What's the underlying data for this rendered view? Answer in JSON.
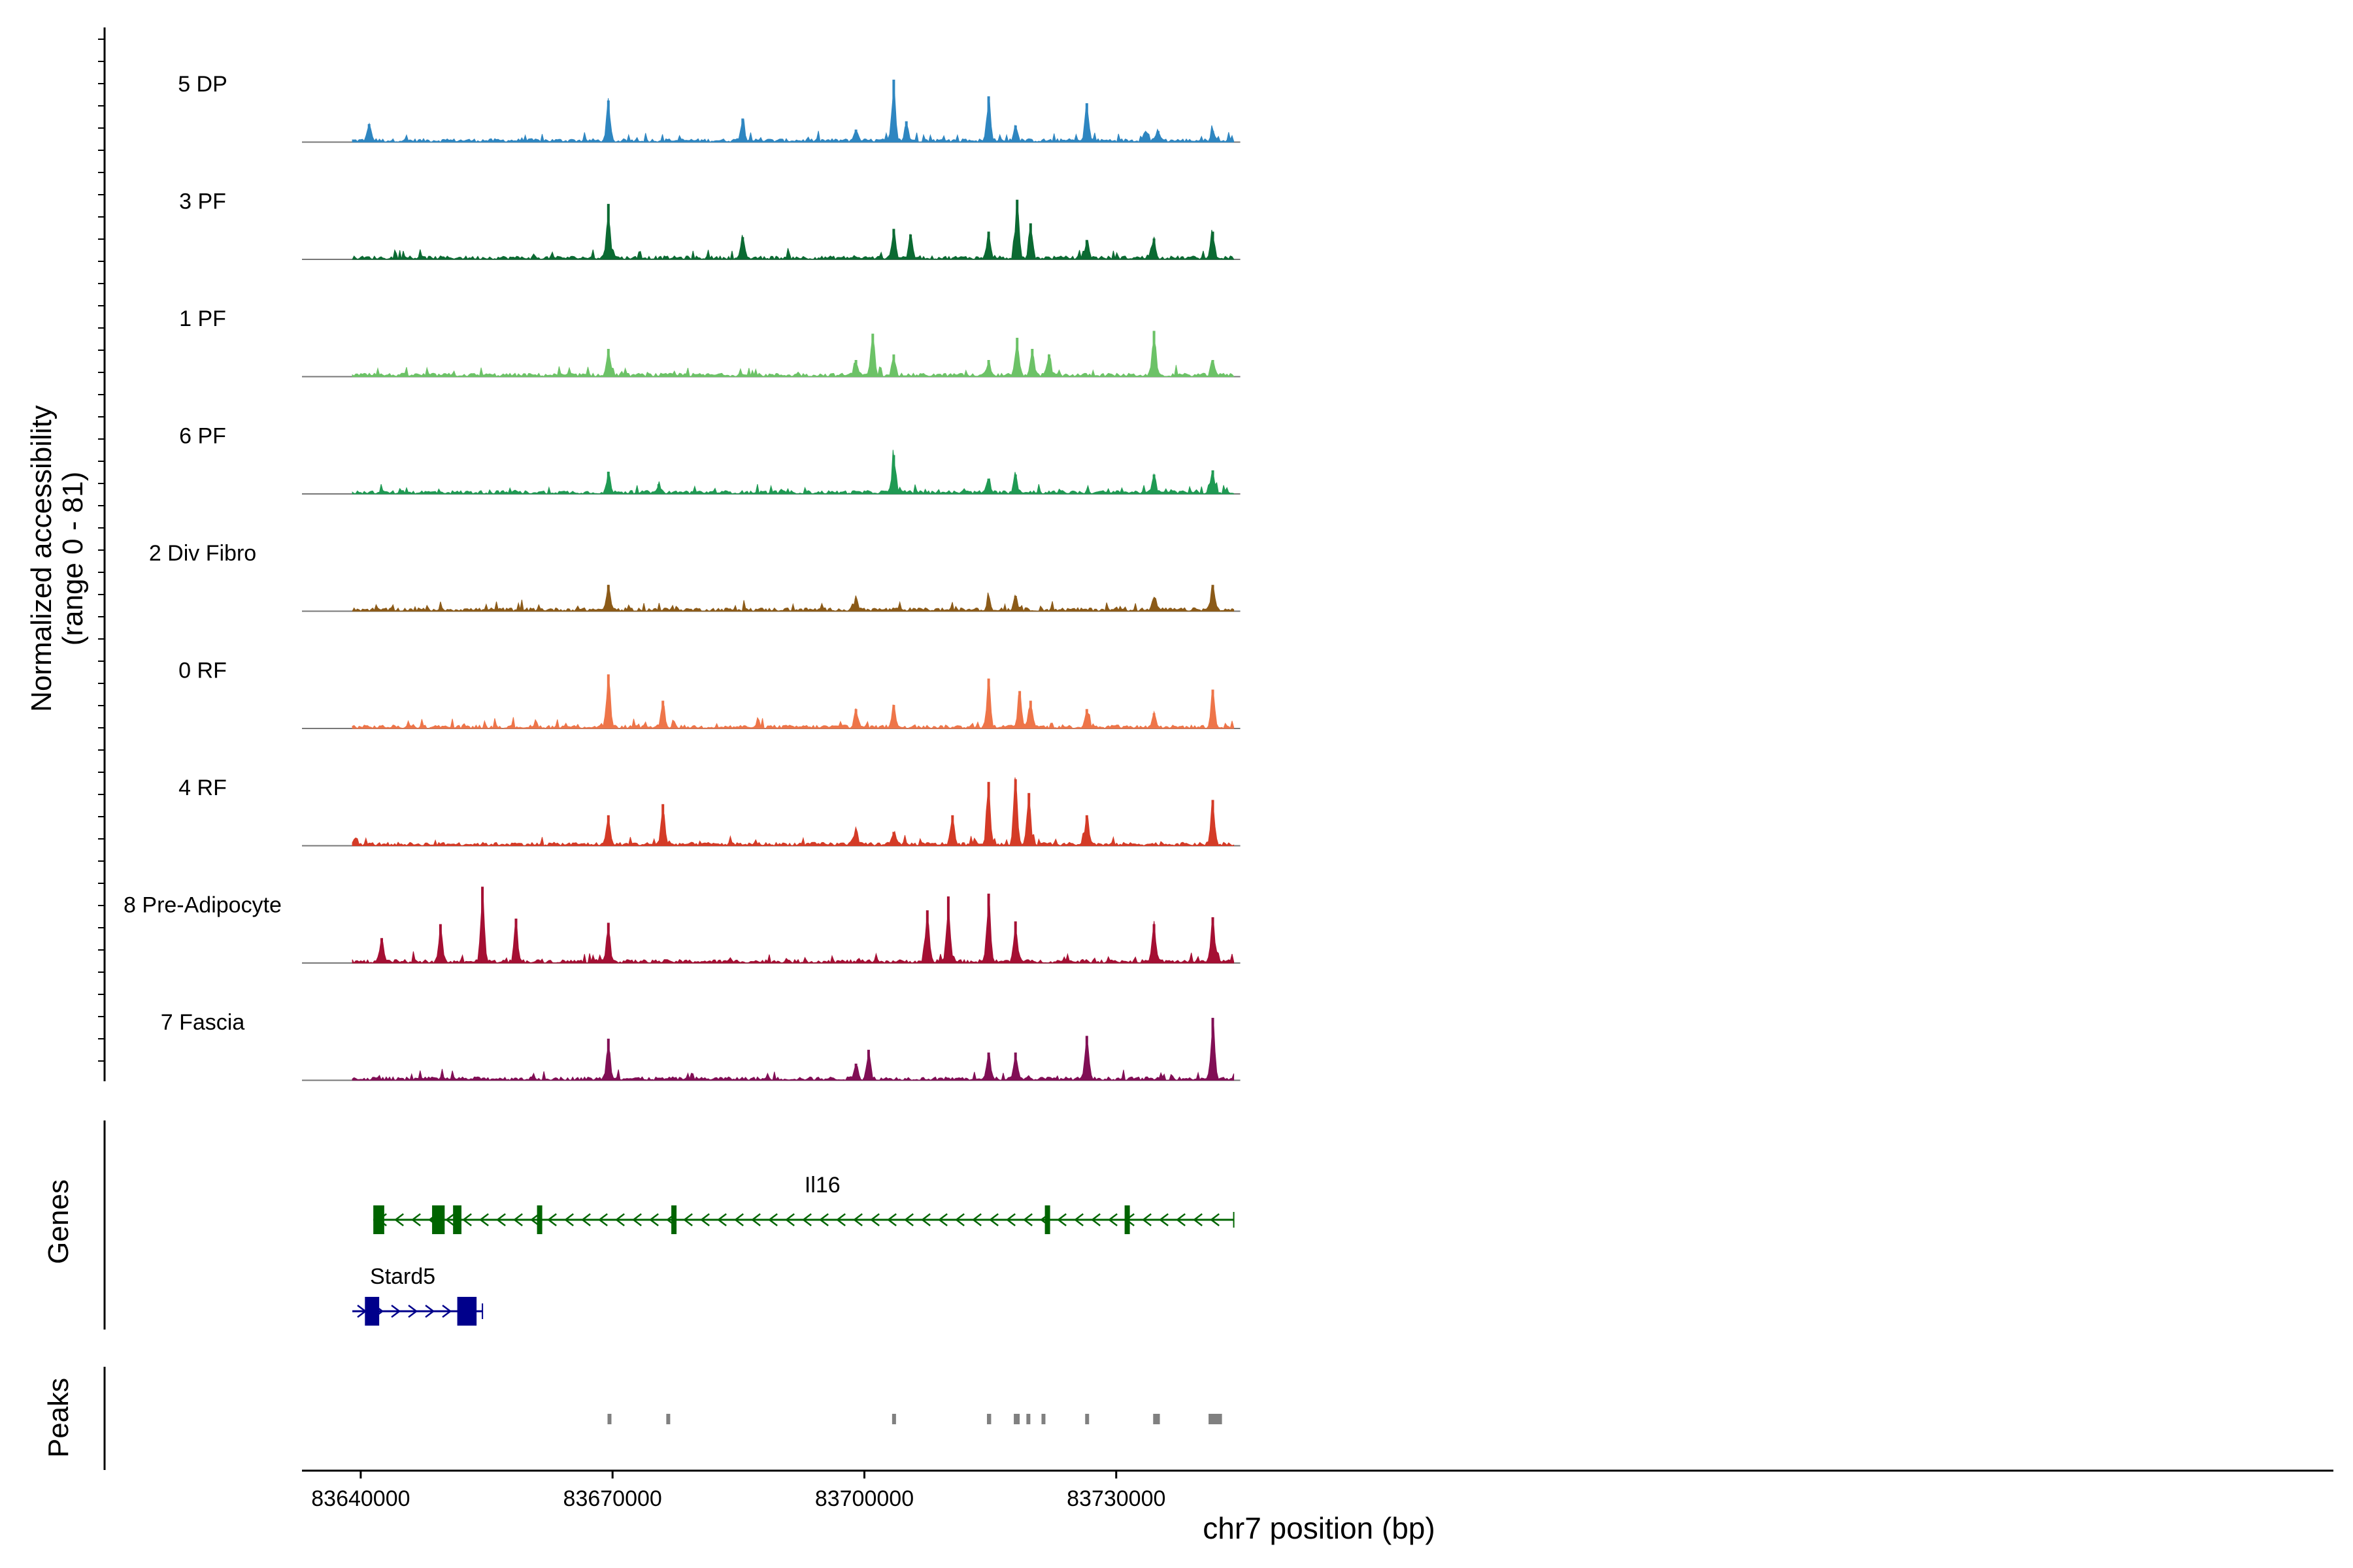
{
  "chart_data": {
    "type": "area",
    "title": "",
    "xlabel": "chr7 position (bp)",
    "ylabel": "Normalized accessibility",
    "ylabel_range": "(range 0 - 81)",
    "xlim": [
      83633000,
      83875000
    ],
    "ylim": [
      0,
      81
    ],
    "x_ticks": [
      {
        "value": 83640000,
        "label": "83640000"
      },
      {
        "value": 83670000,
        "label": "83670000"
      },
      {
        "value": 83700000,
        "label": "83700000"
      },
      {
        "value": 83730000,
        "label": "83730000"
      }
    ],
    "region": [
      83639000,
      83744000
    ],
    "series": [
      {
        "name": "5 DP",
        "color": "#2E86C1",
        "peaks": [
          [
            83641000,
            13
          ],
          [
            83669500,
            30
          ],
          [
            83685500,
            17
          ],
          [
            83699000,
            9
          ],
          [
            83703500,
            45
          ],
          [
            83705000,
            15
          ],
          [
            83714800,
            33
          ],
          [
            83718000,
            12
          ],
          [
            83726500,
            28
          ],
          [
            83733500,
            7
          ],
          [
            83735000,
            8
          ],
          [
            83741500,
            8
          ]
        ]
      },
      {
        "name": "3 PF",
        "color": "#0B6A32",
        "peaks": [
          [
            83669500,
            40
          ],
          [
            83685500,
            16
          ],
          [
            83703500,
            22
          ],
          [
            83705500,
            18
          ],
          [
            83714800,
            20
          ],
          [
            83718200,
            43
          ],
          [
            83719800,
            26
          ],
          [
            83726500,
            14
          ],
          [
            83734500,
            15
          ],
          [
            83741500,
            20
          ]
        ]
      },
      {
        "name": "1 PF",
        "color": "#6CC267",
        "peaks": [
          [
            83669500,
            20
          ],
          [
            83699000,
            12
          ],
          [
            83701000,
            31
          ],
          [
            83703500,
            16
          ],
          [
            83714800,
            12
          ],
          [
            83718200,
            28
          ],
          [
            83720000,
            20
          ],
          [
            83722000,
            16
          ],
          [
            83734500,
            33
          ],
          [
            83741500,
            12
          ]
        ]
      },
      {
        "name": "6 PF",
        "color": "#1F9A53",
        "peaks": [
          [
            83669500,
            16
          ],
          [
            83675500,
            7
          ],
          [
            83703500,
            28
          ],
          [
            83714800,
            11
          ],
          [
            83718000,
            14
          ],
          [
            83734500,
            14
          ],
          [
            83741500,
            17
          ]
        ]
      },
      {
        "name": "2 Div Fibro",
        "color": "#8B5A18",
        "peaks": [
          [
            83669500,
            19
          ],
          [
            83699000,
            9
          ],
          [
            83714800,
            9
          ],
          [
            83718000,
            11
          ],
          [
            83734500,
            9
          ],
          [
            83741500,
            19
          ]
        ]
      },
      {
        "name": "0 RF",
        "color": "#EE7549",
        "peaks": [
          [
            83669500,
            39
          ],
          [
            83676000,
            20
          ],
          [
            83699000,
            14
          ],
          [
            83703500,
            17
          ],
          [
            83714800,
            36
          ],
          [
            83718500,
            27
          ],
          [
            83719800,
            20
          ],
          [
            83726500,
            14
          ],
          [
            83734500,
            11
          ],
          [
            83741500,
            28
          ]
        ]
      },
      {
        "name": "4 RF",
        "color": "#D43B27",
        "peaks": [
          [
            83669500,
            22
          ],
          [
            83676000,
            30
          ],
          [
            83699000,
            10
          ],
          [
            83703500,
            10
          ],
          [
            83710500,
            22
          ],
          [
            83714800,
            46
          ],
          [
            83718000,
            48
          ],
          [
            83719600,
            38
          ],
          [
            83726500,
            22
          ],
          [
            83741500,
            33
          ]
        ]
      },
      {
        "name": "8 Pre-Adipocyte",
        "color": "#A50F33",
        "peaks": [
          [
            83642500,
            18
          ],
          [
            83649500,
            28
          ],
          [
            83654500,
            55
          ],
          [
            83658500,
            32
          ],
          [
            83669500,
            29
          ],
          [
            83710000,
            48
          ],
          [
            83707500,
            38
          ],
          [
            83714800,
            50
          ],
          [
            83718000,
            30
          ],
          [
            83734500,
            28
          ],
          [
            83741500,
            33
          ]
        ]
      },
      {
        "name": "7 Fascia",
        "color": "#810F55",
        "peaks": [
          [
            83669500,
            30
          ],
          [
            83699000,
            12
          ],
          [
            83700500,
            22
          ],
          [
            83714800,
            20
          ],
          [
            83718000,
            20
          ],
          [
            83726500,
            32
          ],
          [
            83741500,
            45
          ]
        ]
      }
    ],
    "genes_track_label": "Genes",
    "genes": [
      {
        "name": "Il16",
        "strand": "-",
        "color": "#006400",
        "start": 83641500,
        "end": 83744000,
        "exons": [
          [
            83641500,
            83642800
          ],
          [
            83648500,
            83650000
          ],
          [
            83651000,
            83652000
          ],
          [
            83661000,
            83661500
          ],
          [
            83677000,
            83677600
          ],
          [
            83721500,
            83722000
          ],
          [
            83731000,
            83731400
          ]
        ]
      },
      {
        "name": "Stard5",
        "strand": "+",
        "color": "#00008B",
        "start": 83639000,
        "end": 83654500,
        "exons": [
          [
            83640500,
            83642200
          ],
          [
            83651500,
            83653800
          ]
        ]
      }
    ],
    "peaks_track_label": "Peaks",
    "peak_regions": [
      [
        83669400,
        83669800
      ],
      [
        83676400,
        83676700
      ],
      [
        83703300,
        83703700
      ],
      [
        83714600,
        83715100
      ],
      [
        83717800,
        83718500
      ],
      [
        83719300,
        83719600
      ],
      [
        83721100,
        83721400
      ],
      [
        83726300,
        83726700
      ],
      [
        83734400,
        83735200
      ],
      [
        83741000,
        83742600
      ]
    ]
  }
}
